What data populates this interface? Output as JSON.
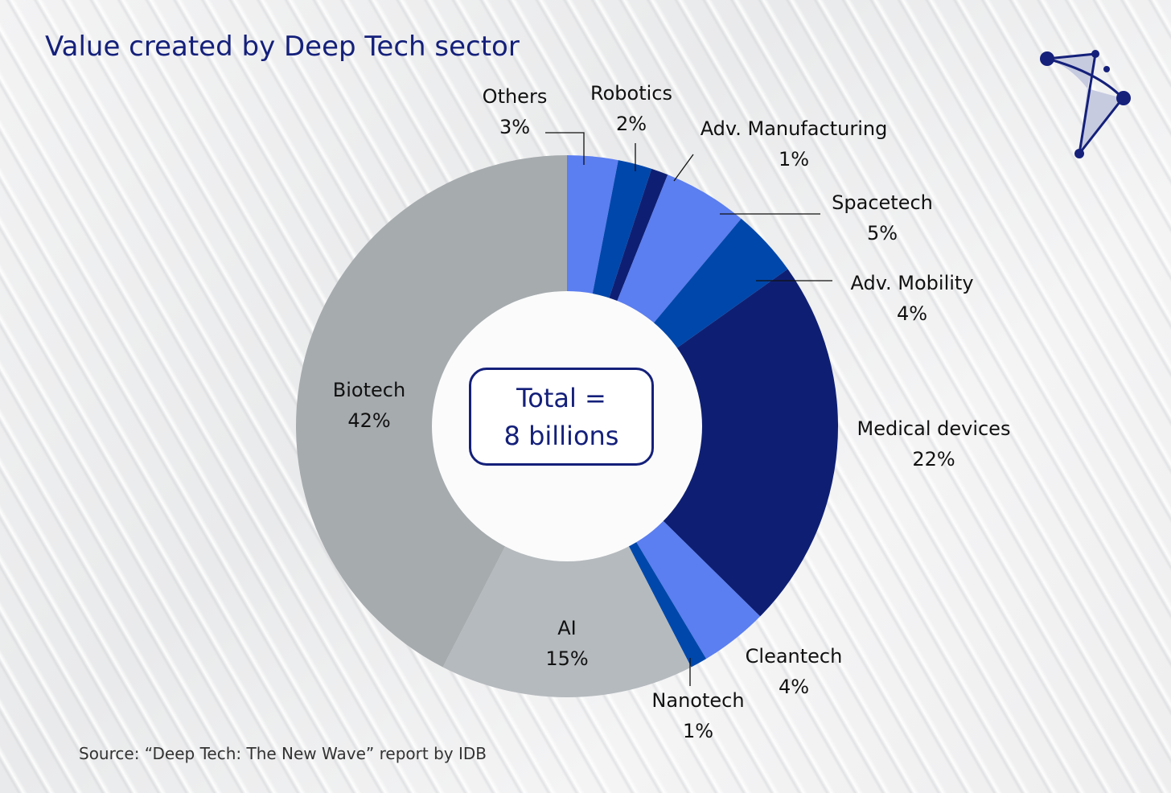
{
  "chart_data": {
    "type": "pie",
    "title": "Value created by Deep Tech sector",
    "center_label": [
      "Total =",
      "8 billions"
    ],
    "source": "Source: “Deep Tech: The New Wave” report by IDB",
    "unit": "%",
    "slices": [
      {
        "label": "Others",
        "value": 3,
        "pct": "3%",
        "color": "#5b7ef0"
      },
      {
        "label": "Robotics",
        "value": 2,
        "pct": "2%",
        "color": "#0047ab"
      },
      {
        "label": "Adv. Manufacturing",
        "value": 1,
        "pct": "1%",
        "color": "#0e1f73"
      },
      {
        "label": "Spacetech",
        "value": 5,
        "pct": "5%",
        "color": "#5b7ef0"
      },
      {
        "label": "Adv. Mobility",
        "value": 4,
        "pct": "4%",
        "color": "#0047ab"
      },
      {
        "label": "Medical devices",
        "value": 22,
        "pct": "22%",
        "color": "#0e1f73"
      },
      {
        "label": "Cleantech",
        "value": 4,
        "pct": "4%",
        "color": "#5b7ef0"
      },
      {
        "label": "Nanotech",
        "value": 1,
        "pct": "1%",
        "color": "#0047ab"
      },
      {
        "label": "AI",
        "value": 15,
        "pct": "15%",
        "color": "#b5babe"
      },
      {
        "label": "Biotech",
        "value": 42,
        "pct": "42%",
        "color": "#a6abae"
      }
    ]
  }
}
